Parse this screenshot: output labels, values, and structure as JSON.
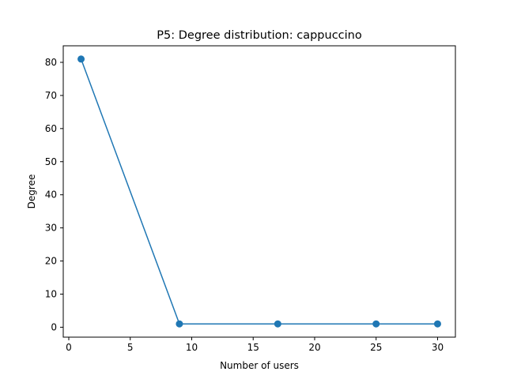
{
  "chart_data": {
    "type": "line",
    "title": "P5: Degree distribution: cappuccino",
    "xlabel": "Number of users",
    "ylabel": "Degree",
    "xlim": [
      -0.45,
      31.45
    ],
    "ylim": [
      -3.0,
      85.0
    ],
    "xticks": [
      0,
      5,
      10,
      15,
      20,
      25,
      30
    ],
    "yticks": [
      0,
      10,
      20,
      30,
      40,
      50,
      60,
      70,
      80
    ],
    "grid": false,
    "legend": "none",
    "series": [
      {
        "x": [
          1,
          9,
          17,
          25,
          30
        ],
        "y": [
          81,
          1,
          1,
          1,
          1
        ],
        "color": "#1f77b4",
        "marker": "circle"
      }
    ]
  }
}
